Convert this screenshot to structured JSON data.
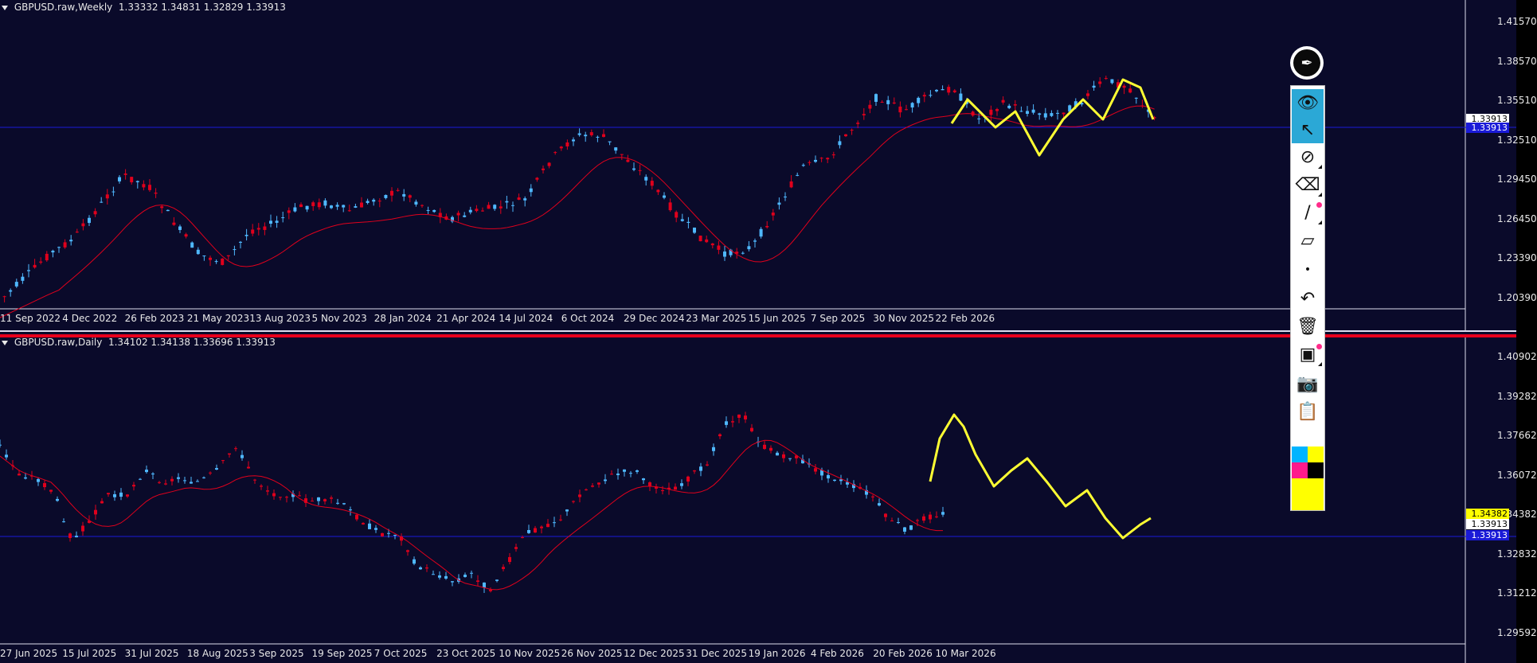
{
  "weekly": {
    "symbol_tf": "GBPUSD.raw,Weekly",
    "ohlc": "1.33332 1.34831 1.32829 1.33913",
    "y_ticks": [
      "1.41570",
      "1.38570",
      "1.35510",
      "1.32510",
      "1.29450",
      "1.26450",
      "1.23390",
      "1.20390"
    ],
    "x_ticks": [
      "11 Sep 2022",
      "4 Dec 2022",
      "26 Feb 2023",
      "21 May 2023",
      "13 Aug 2023",
      "5 Nov 2023",
      "28 Jan 2024",
      "21 Apr 2024",
      "14 Jul 2024",
      "6 Oct 2024",
      "29 Dec 2024",
      "23 Mar 2025",
      "15 Jun 2025",
      "7 Sep 2025",
      "30 Nov 2025",
      "22 Feb 2026"
    ],
    "price_labels": [
      "1.33913",
      "1.33913"
    ]
  },
  "daily": {
    "symbol_tf": "GBPUSD.raw,Daily",
    "ohlc": "1.34102 1.34138 1.33696 1.33913",
    "y_ticks": [
      "1.40902",
      "1.39282",
      "1.37662",
      "1.36072",
      "1.34382",
      "1.32832",
      "1.31212",
      "1.29592"
    ],
    "x_ticks": [
      "27 Jun 2025",
      "15 Jul 2025",
      "31 Jul 2025",
      "18 Aug 2025",
      "3 Sep 2025",
      "19 Sep 2025",
      "7 Oct 2025",
      "23 Oct 2025",
      "10 Nov 2025",
      "26 Nov 2025",
      "12 Dec 2025",
      "31 Dec 2025",
      "19 Jan 2026",
      "4 Feb 2026",
      "20 Feb 2026",
      "10 Mar 2026"
    ],
    "price_labels": [
      "1.34382",
      "1.33913",
      "1.33913"
    ]
  },
  "toolbar": {
    "tools": [
      "eye-icon",
      "cursor-icon",
      "compass-icon",
      "eraser-icon",
      "pencil-icon",
      "highlighter-icon",
      "dot-icon",
      "undo-icon",
      "trash-icon",
      "template-icon",
      "camera-icon",
      "clipboard-icon"
    ],
    "palette": [
      "#00b4ff",
      "#ffff00",
      "#ff1a8c",
      "#000000",
      "#ffff00"
    ]
  },
  "colors": {
    "background": "#0a0a2a",
    "bull": "#4fb8ff",
    "bear": "#e0001c",
    "ma": "#e0001c",
    "drawing": "#ffff33",
    "bid_line": "#1a1ad8",
    "level_line": "#ffff00"
  }
}
